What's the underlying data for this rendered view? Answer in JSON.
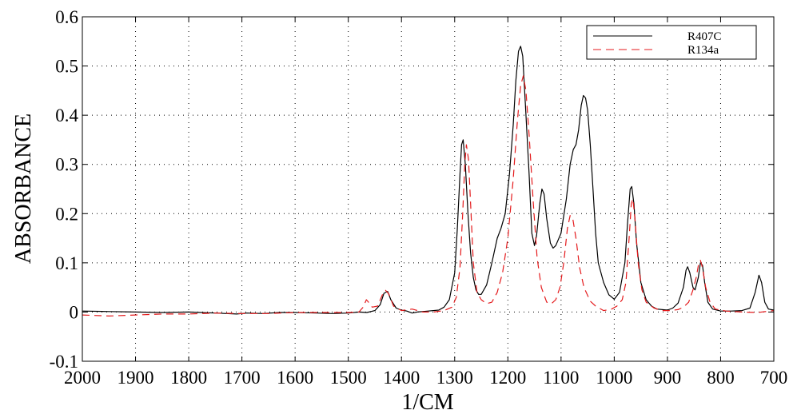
{
  "chart_data": {
    "type": "line",
    "title": "",
    "xlabel": "1/CM",
    "ylabel": "ABSORBANCE",
    "xlim": [
      2000,
      700
    ],
    "ylim": [
      -0.1,
      0.6
    ],
    "x_reversed": true,
    "x_ticks": [
      "2000",
      "1900",
      "1800",
      "1700",
      "1600",
      "1500",
      "1400",
      "1300",
      "1200",
      "1100",
      "1000",
      "900",
      "800",
      "700"
    ],
    "y_ticks": [
      "0.6",
      "0.5",
      "0.4",
      "0.3",
      "0.2",
      "0.1",
      "0",
      "-0.1"
    ],
    "grid": "dotted",
    "legend_position": "top-right",
    "series": [
      {
        "name": "R407C",
        "color": "#000000",
        "style": "solid",
        "points": [
          [
            2000,
            0.002
          ],
          [
            1950,
            0.001
          ],
          [
            1900,
            0.0
          ],
          [
            1850,
            -0.001
          ],
          [
            1800,
            0.0
          ],
          [
            1750,
            -0.002
          ],
          [
            1710,
            -0.004
          ],
          [
            1690,
            -0.002
          ],
          [
            1660,
            -0.003
          ],
          [
            1630,
            -0.001
          ],
          [
            1600,
            -0.001
          ],
          [
            1560,
            -0.002
          ],
          [
            1530,
            -0.003
          ],
          [
            1500,
            -0.002
          ],
          [
            1480,
            0.0
          ],
          [
            1465,
            -0.001
          ],
          [
            1450,
            0.003
          ],
          [
            1440,
            0.015
          ],
          [
            1433,
            0.038
          ],
          [
            1426,
            0.042
          ],
          [
            1420,
            0.025
          ],
          [
            1410,
            0.008
          ],
          [
            1400,
            0.004
          ],
          [
            1390,
            0.002
          ],
          [
            1380,
            -0.002
          ],
          [
            1370,
            0.0
          ],
          [
            1350,
            0.002
          ],
          [
            1330,
            0.004
          ],
          [
            1320,
            0.01
          ],
          [
            1310,
            0.025
          ],
          [
            1300,
            0.08
          ],
          [
            1295,
            0.17
          ],
          [
            1290,
            0.28
          ],
          [
            1287,
            0.34
          ],
          [
            1284,
            0.35
          ],
          [
            1280,
            0.3
          ],
          [
            1275,
            0.2
          ],
          [
            1270,
            0.12
          ],
          [
            1265,
            0.07
          ],
          [
            1260,
            0.045
          ],
          [
            1255,
            0.036
          ],
          [
            1250,
            0.036
          ],
          [
            1240,
            0.055
          ],
          [
            1230,
            0.1
          ],
          [
            1220,
            0.15
          ],
          [
            1213,
            0.17
          ],
          [
            1205,
            0.2
          ],
          [
            1197,
            0.28
          ],
          [
            1190,
            0.38
          ],
          [
            1185,
            0.47
          ],
          [
            1180,
            0.53
          ],
          [
            1176,
            0.54
          ],
          [
            1172,
            0.52
          ],
          [
            1167,
            0.42
          ],
          [
            1160,
            0.28
          ],
          [
            1155,
            0.16
          ],
          [
            1150,
            0.135
          ],
          [
            1146,
            0.155
          ],
          [
            1140,
            0.22
          ],
          [
            1136,
            0.25
          ],
          [
            1132,
            0.24
          ],
          [
            1127,
            0.19
          ],
          [
            1120,
            0.14
          ],
          [
            1115,
            0.13
          ],
          [
            1110,
            0.135
          ],
          [
            1100,
            0.16
          ],
          [
            1090,
            0.23
          ],
          [
            1083,
            0.3
          ],
          [
            1077,
            0.33
          ],
          [
            1072,
            0.34
          ],
          [
            1067,
            0.37
          ],
          [
            1062,
            0.42
          ],
          [
            1058,
            0.44
          ],
          [
            1054,
            0.435
          ],
          [
            1050,
            0.41
          ],
          [
            1045,
            0.34
          ],
          [
            1040,
            0.25
          ],
          [
            1035,
            0.16
          ],
          [
            1030,
            0.1
          ],
          [
            1020,
            0.06
          ],
          [
            1010,
            0.035
          ],
          [
            1000,
            0.026
          ],
          [
            990,
            0.04
          ],
          [
            980,
            0.1
          ],
          [
            975,
            0.18
          ],
          [
            970,
            0.25
          ],
          [
            967,
            0.255
          ],
          [
            963,
            0.22
          ],
          [
            958,
            0.14
          ],
          [
            950,
            0.06
          ],
          [
            940,
            0.025
          ],
          [
            930,
            0.012
          ],
          [
            920,
            0.006
          ],
          [
            900,
            0.004
          ],
          [
            890,
            0.008
          ],
          [
            880,
            0.018
          ],
          [
            870,
            0.05
          ],
          [
            865,
            0.085
          ],
          [
            862,
            0.092
          ],
          [
            858,
            0.08
          ],
          [
            852,
            0.05
          ],
          [
            848,
            0.045
          ],
          [
            842,
            0.07
          ],
          [
            838,
            0.1
          ],
          [
            834,
            0.095
          ],
          [
            830,
            0.06
          ],
          [
            824,
            0.02
          ],
          [
            815,
            0.006
          ],
          [
            800,
            0.002
          ],
          [
            780,
            0.002
          ],
          [
            760,
            0.003
          ],
          [
            745,
            0.008
          ],
          [
            735,
            0.04
          ],
          [
            728,
            0.075
          ],
          [
            723,
            0.06
          ],
          [
            717,
            0.02
          ],
          [
            710,
            0.006
          ],
          [
            700,
            0.004
          ]
        ]
      },
      {
        "name": "R134a",
        "color": "#e41a1c",
        "style": "dashed",
        "points": [
          [
            2000,
            -0.006
          ],
          [
            1950,
            -0.008
          ],
          [
            1900,
            -0.006
          ],
          [
            1850,
            -0.004
          ],
          [
            1800,
            -0.004
          ],
          [
            1750,
            -0.002
          ],
          [
            1700,
            -0.003
          ],
          [
            1650,
            -0.003
          ],
          [
            1600,
            -0.001
          ],
          [
            1550,
            -0.001
          ],
          [
            1500,
            -0.001
          ],
          [
            1480,
            0.0
          ],
          [
            1472,
            0.01
          ],
          [
            1466,
            0.025
          ],
          [
            1462,
            0.02
          ],
          [
            1455,
            0.01
          ],
          [
            1445,
            0.012
          ],
          [
            1436,
            0.035
          ],
          [
            1430,
            0.044
          ],
          [
            1424,
            0.037
          ],
          [
            1415,
            0.012
          ],
          [
            1400,
            0.003
          ],
          [
            1380,
            0.006
          ],
          [
            1360,
            0.0
          ],
          [
            1340,
            0.0
          ],
          [
            1320,
            0.003
          ],
          [
            1305,
            0.01
          ],
          [
            1297,
            0.03
          ],
          [
            1290,
            0.09
          ],
          [
            1285,
            0.2
          ],
          [
            1281,
            0.3
          ],
          [
            1278,
            0.34
          ],
          [
            1274,
            0.31
          ],
          [
            1270,
            0.22
          ],
          [
            1265,
            0.1
          ],
          [
            1258,
            0.04
          ],
          [
            1250,
            0.025
          ],
          [
            1240,
            0.017
          ],
          [
            1230,
            0.02
          ],
          [
            1220,
            0.04
          ],
          [
            1210,
            0.08
          ],
          [
            1200,
            0.15
          ],
          [
            1190,
            0.27
          ],
          [
            1182,
            0.39
          ],
          [
            1176,
            0.46
          ],
          [
            1171,
            0.48
          ],
          [
            1166,
            0.45
          ],
          [
            1160,
            0.36
          ],
          [
            1152,
            0.22
          ],
          [
            1145,
            0.11
          ],
          [
            1137,
            0.05
          ],
          [
            1127,
            0.02
          ],
          [
            1118,
            0.017
          ],
          [
            1110,
            0.025
          ],
          [
            1102,
            0.05
          ],
          [
            1095,
            0.1
          ],
          [
            1088,
            0.17
          ],
          [
            1083,
            0.196
          ],
          [
            1078,
            0.19
          ],
          [
            1072,
            0.15
          ],
          [
            1065,
            0.09
          ],
          [
            1057,
            0.05
          ],
          [
            1045,
            0.022
          ],
          [
            1035,
            0.012
          ],
          [
            1020,
            0.003
          ],
          [
            1005,
            0.006
          ],
          [
            995,
            0.012
          ],
          [
            985,
            0.025
          ],
          [
            978,
            0.06
          ],
          [
            972,
            0.15
          ],
          [
            968,
            0.22
          ],
          [
            965,
            0.23
          ],
          [
            961,
            0.19
          ],
          [
            955,
            0.1
          ],
          [
            948,
            0.045
          ],
          [
            940,
            0.02
          ],
          [
            925,
            0.008
          ],
          [
            910,
            0.003
          ],
          [
            895,
            0.003
          ],
          [
            880,
            0.005
          ],
          [
            870,
            0.01
          ],
          [
            860,
            0.02
          ],
          [
            852,
            0.045
          ],
          [
            846,
            0.07
          ],
          [
            841,
            0.1
          ],
          [
            838,
            0.105
          ],
          [
            834,
            0.09
          ],
          [
            828,
            0.05
          ],
          [
            820,
            0.02
          ],
          [
            810,
            0.006
          ],
          [
            790,
            0.002
          ],
          [
            760,
            0.0
          ],
          [
            730,
            -0.001
          ],
          [
            700,
            0.003
          ]
        ]
      }
    ]
  }
}
